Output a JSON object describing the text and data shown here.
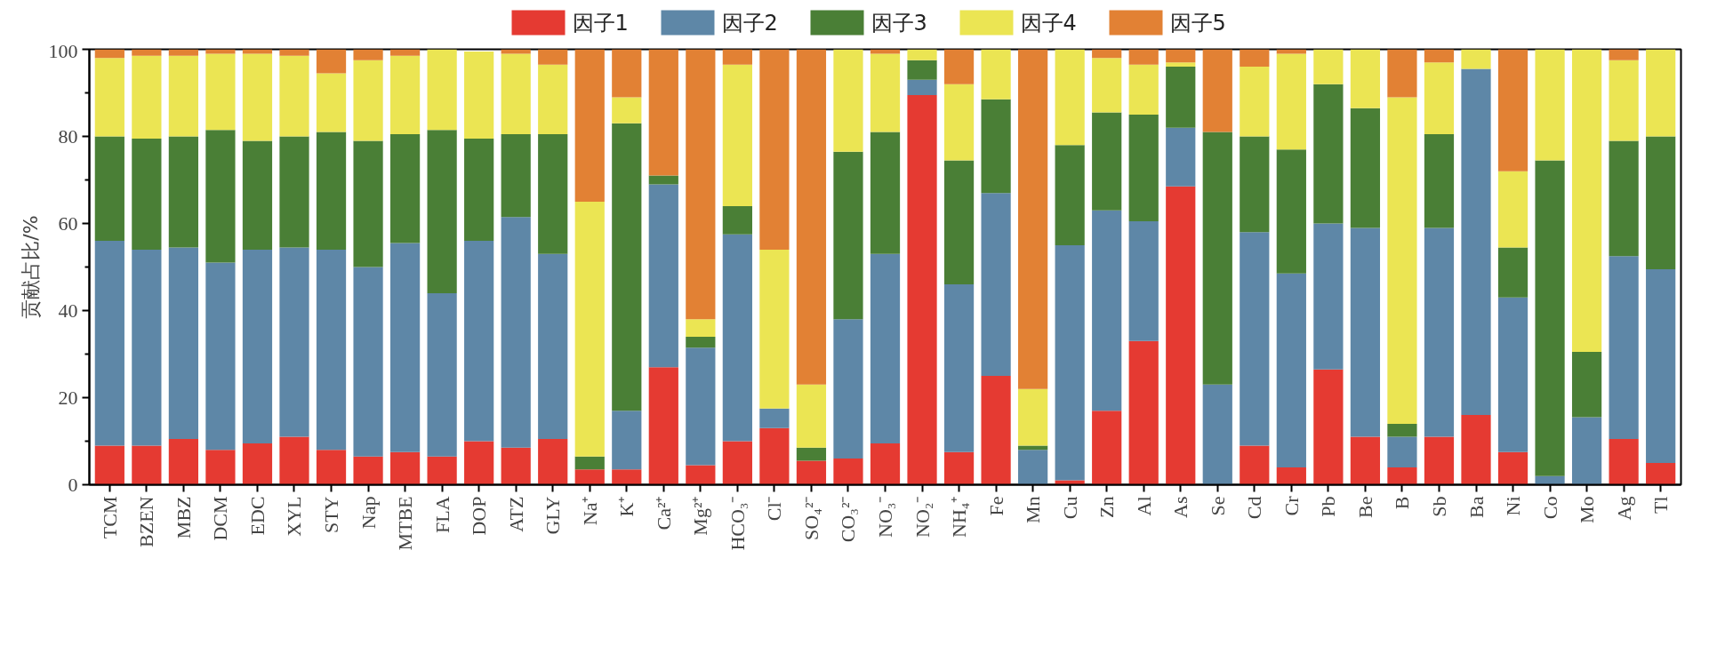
{
  "chart_data": {
    "type": "bar",
    "stacked": true,
    "ylabel": "贡献占比/%",
    "categories": [
      "TCM",
      "BZEN",
      "MBZ",
      "DCM",
      "EDC",
      "XYL",
      "STY",
      "Nap",
      "MTBE",
      "FLA",
      "DOP",
      "ATZ",
      "GLY",
      "Na⁺",
      "K⁺",
      "Ca²⁺",
      "Mg²⁺",
      "HCO₃⁻",
      "Cl⁻",
      "SO₄²⁻",
      "CO₃²⁻",
      "NO₃⁻",
      "NO₂⁻",
      "NH₄⁺",
      "Fe",
      "Mn",
      "Cu",
      "Zn",
      "Al",
      "As",
      "Se",
      "Cd",
      "Cr",
      "Pb",
      "Be",
      "B",
      "Sb",
      "Ba",
      "Ni",
      "Co",
      "Mo",
      "Ag",
      "Tl"
    ],
    "series": [
      {
        "name": "因子1",
        "color": "#e53a32",
        "values": [
          9,
          9,
          10.5,
          8,
          9.5,
          11,
          8,
          6.5,
          7.5,
          6.5,
          10,
          8.5,
          10.5,
          3.5,
          3.5,
          27,
          4.5,
          10,
          13,
          5.5,
          6,
          9.5,
          89.5,
          7.5,
          25,
          0,
          1,
          17,
          33,
          68.5,
          0,
          9,
          4,
          26.5,
          11,
          4,
          11,
          16,
          7.5,
          0,
          0,
          10.5,
          5
        ]
      },
      {
        "name": "因子2",
        "color": "#5e87a7",
        "values": [
          47,
          45,
          44,
          43,
          44.5,
          43.5,
          46,
          43.5,
          48,
          37.5,
          46,
          53,
          42.5,
          0,
          13.5,
          42,
          27,
          47.5,
          4.5,
          0,
          32,
          43.5,
          3.5,
          38.5,
          42,
          8,
          54,
          46,
          27.5,
          13.5,
          23,
          49,
          44.5,
          33.5,
          48,
          7,
          48,
          79.5,
          35.5,
          2,
          15.5,
          42,
          44.5
        ]
      },
      {
        "name": "因子3",
        "color": "#4a7f36",
        "values": [
          24,
          25.5,
          25.5,
          30.5,
          25,
          25.5,
          27,
          29,
          25,
          37.5,
          23.5,
          19,
          27.5,
          3,
          66,
          2,
          2.5,
          6.5,
          0,
          3,
          38.5,
          28,
          4.5,
          28.5,
          21.5,
          1,
          23,
          22.5,
          24.5,
          14,
          58,
          22,
          28.5,
          32,
          27.5,
          3,
          21.5,
          0,
          11.5,
          72.5,
          15,
          26.5,
          30.5
        ]
      },
      {
        "name": "因子4",
        "color": "#ebe553",
        "values": [
          18,
          19,
          18.5,
          17.5,
          20,
          18.5,
          13.5,
          18.5,
          18,
          18.5,
          20,
          18.5,
          16,
          58.5,
          6,
          0,
          4,
          32.5,
          36.5,
          14.5,
          23.5,
          18,
          2.5,
          17.5,
          11.5,
          13,
          22,
          12.5,
          11.5,
          1,
          0,
          16,
          22,
          8,
          13.5,
          75,
          16.5,
          4.5,
          17.5,
          25.5,
          69.5,
          18.5,
          20
        ]
      },
      {
        "name": "因子5",
        "color": "#e28134",
        "values": [
          2,
          1.5,
          1.5,
          1,
          1,
          1.5,
          5.5,
          2.5,
          1.5,
          0,
          0,
          1,
          3.5,
          35,
          11,
          29,
          62,
          3.5,
          46,
          77,
          0,
          1,
          0,
          8,
          0,
          78,
          0,
          2,
          3.5,
          3,
          19,
          4,
          1,
          0,
          0,
          11,
          3,
          0,
          28,
          0,
          0,
          2.5,
          0
        ]
      }
    ],
    "ylim": [
      0,
      100
    ],
    "yticks": [
      0,
      {
        "value": 10,
        "label": null
      },
      20,
      {
        "value": 30,
        "label": null
      },
      40,
      {
        "value": 50,
        "label": null
      },
      60,
      {
        "value": 70,
        "label": null
      },
      80,
      {
        "value": 90,
        "label": null
      },
      100
    ],
    "grid": false,
    "legend": "top"
  }
}
